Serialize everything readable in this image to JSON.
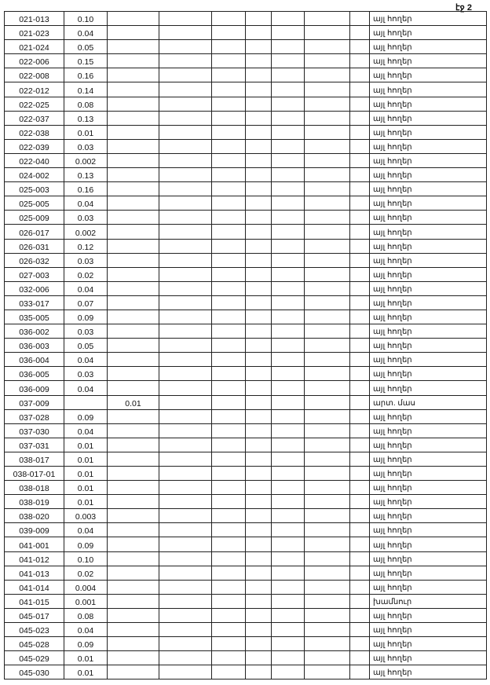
{
  "page_label": "էջ 2",
  "rows": [
    {
      "code": "021-013",
      "area": "0.10",
      "extra": "",
      "type": "այլ հողեր"
    },
    {
      "code": "021-023",
      "area": "0.04",
      "extra": "",
      "type": "այլ հողեր"
    },
    {
      "code": "021-024",
      "area": "0.05",
      "extra": "",
      "type": "այլ հողեր"
    },
    {
      "code": "022-006",
      "area": "0.15",
      "extra": "",
      "type": "այլ հողեր"
    },
    {
      "code": "022-008",
      "area": "0.16",
      "extra": "",
      "type": "այլ հողեր"
    },
    {
      "code": "022-012",
      "area": "0.14",
      "extra": "",
      "type": "այլ հողեր"
    },
    {
      "code": "022-025",
      "area": "0.08",
      "extra": "",
      "type": "այլ հողեր"
    },
    {
      "code": "022-037",
      "area": "0.13",
      "extra": "",
      "type": "այլ հողեր"
    },
    {
      "code": "022-038",
      "area": "0.01",
      "extra": "",
      "type": "այլ հողեր"
    },
    {
      "code": "022-039",
      "area": "0.03",
      "extra": "",
      "type": "այլ հողեր"
    },
    {
      "code": "022-040",
      "area": "0.002",
      "extra": "",
      "type": "այլ հողեր"
    },
    {
      "code": "024-002",
      "area": "0.13",
      "extra": "",
      "type": "այլ հողեր"
    },
    {
      "code": "025-003",
      "area": "0.16",
      "extra": "",
      "type": "այլ հողեր"
    },
    {
      "code": "025-005",
      "area": "0.04",
      "extra": "",
      "type": "այլ հողեր"
    },
    {
      "code": "025-009",
      "area": "0.03",
      "extra": "",
      "type": "այլ հողեր"
    },
    {
      "code": "026-017",
      "area": "0.002",
      "extra": "",
      "type": "այլ հողեր"
    },
    {
      "code": "026-031",
      "area": "0.12",
      "extra": "",
      "type": "այլ հողեր"
    },
    {
      "code": "026-032",
      "area": "0.03",
      "extra": "",
      "type": "այլ հողեր"
    },
    {
      "code": "027-003",
      "area": "0.02",
      "extra": "",
      "type": "այլ հողեր"
    },
    {
      "code": "032-006",
      "area": "0.04",
      "extra": "",
      "type": "այլ հողեր"
    },
    {
      "code": "033-017",
      "area": "0.07",
      "extra": "",
      "type": "այլ հողեր"
    },
    {
      "code": "035-005",
      "area": "0.09",
      "extra": "",
      "type": "այլ հողեր"
    },
    {
      "code": "036-002",
      "area": "0.03",
      "extra": "",
      "type": "այլ հողեր"
    },
    {
      "code": "036-003",
      "area": "0.05",
      "extra": "",
      "type": "այլ հողեր"
    },
    {
      "code": "036-004",
      "area": "0.04",
      "extra": "",
      "type": "այլ հողեր"
    },
    {
      "code": "036-005",
      "area": "0.03",
      "extra": "",
      "type": "այլ հողեր"
    },
    {
      "code": "036-009",
      "area": "0.04",
      "extra": "",
      "type": "այլ հողեր"
    },
    {
      "code": "037-009",
      "area": "",
      "extra": "0.01",
      "type": "արտ. մաս"
    },
    {
      "code": "037-028",
      "area": "0.09",
      "extra": "",
      "type": "այլ հողեր"
    },
    {
      "code": "037-030",
      "area": "0.04",
      "extra": "",
      "type": "այլ հողեր"
    },
    {
      "code": "037-031",
      "area": "0.01",
      "extra": "",
      "type": "այլ հողեր"
    },
    {
      "code": "038-017",
      "area": "0.01",
      "extra": "",
      "type": "այլ հողեր"
    },
    {
      "code": "038-017-01",
      "area": "0.01",
      "extra": "",
      "type": "այլ հողեր"
    },
    {
      "code": "038-018",
      "area": "0.01",
      "extra": "",
      "type": "այլ հողեր"
    },
    {
      "code": "038-019",
      "area": "0.01",
      "extra": "",
      "type": "այլ հողեր"
    },
    {
      "code": "038-020",
      "area": "0.003",
      "extra": "",
      "type": "այլ հողեր"
    },
    {
      "code": "039-009",
      "area": "0.04",
      "extra": "",
      "type": "այլ հողեր"
    },
    {
      "code": "041-001",
      "area": "0.09",
      "extra": "",
      "type": "այլ հողեր"
    },
    {
      "code": "041-012",
      "area": "0.10",
      "extra": "",
      "type": "այլ հողեր"
    },
    {
      "code": "041-013",
      "area": "0.02",
      "extra": "",
      "type": "այլ հողեր"
    },
    {
      "code": "041-014",
      "area": "0.004",
      "extra": "",
      "type": "այլ հողեր"
    },
    {
      "code": "041-015",
      "area": "0.001",
      "extra": "",
      "type": "խամնուր"
    },
    {
      "code": "045-017",
      "area": "0.08",
      "extra": "",
      "type": "այլ հողեր"
    },
    {
      "code": "045-023",
      "area": "0.04",
      "extra": "",
      "type": "այլ հողեր"
    },
    {
      "code": "045-028",
      "area": "0.09",
      "extra": "",
      "type": "այլ հողեր"
    },
    {
      "code": "045-029",
      "area": "0.01",
      "extra": "",
      "type": "այլ հողեր"
    },
    {
      "code": "045-030",
      "area": "0.01",
      "extra": "",
      "type": "այլ հողեր"
    }
  ]
}
